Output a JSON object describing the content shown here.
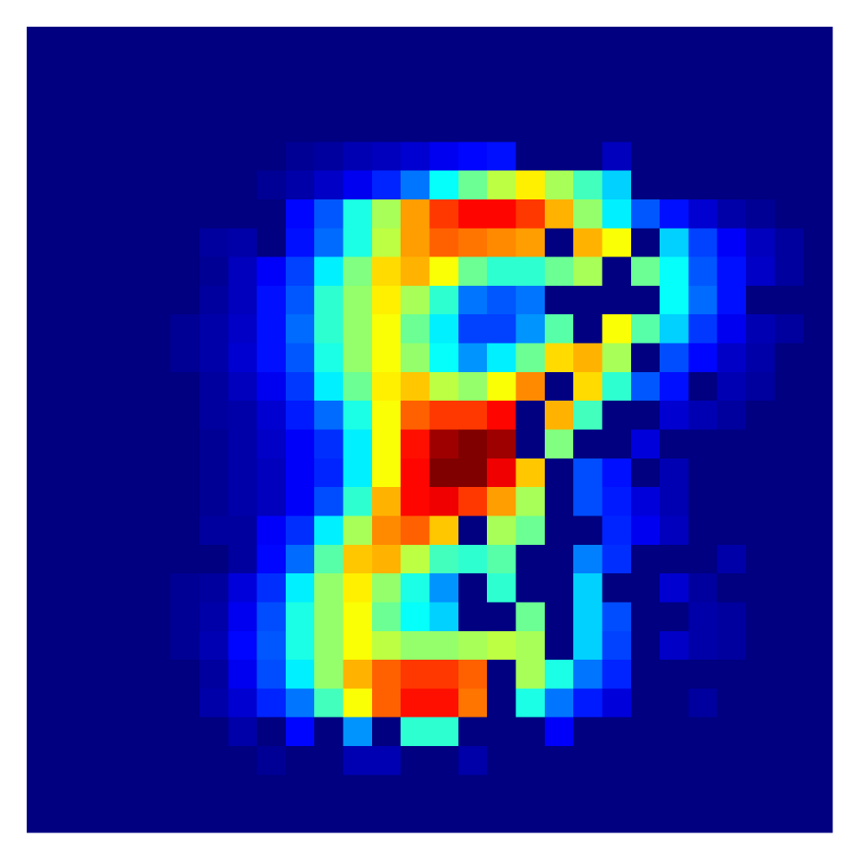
{
  "chart_data": {
    "type": "heatmap",
    "colormap": "jet",
    "zlim": [
      0,
      1
    ],
    "values": [
      [
        0,
        0,
        0,
        0,
        0,
        0,
        0,
        0,
        0,
        0,
        0,
        0,
        0,
        0,
        0,
        0,
        0,
        0,
        0,
        0,
        0,
        0,
        0,
        0,
        0,
        0,
        0,
        0
      ],
      [
        0,
        0,
        0,
        0,
        0,
        0,
        0,
        0,
        0,
        0,
        0,
        0,
        0,
        0,
        0,
        0,
        0,
        0,
        0,
        0,
        0,
        0,
        0,
        0,
        0,
        0,
        0,
        0
      ],
      [
        0,
        0,
        0,
        0,
        0,
        0,
        0,
        0,
        0,
        0,
        0,
        0,
        0,
        0,
        0,
        0,
        0,
        0,
        0,
        0,
        0,
        0,
        0,
        0,
        0,
        0,
        0,
        0
      ],
      [
        0,
        0,
        0,
        0,
        0,
        0,
        0,
        0,
        0,
        0,
        0,
        0,
        0,
        0,
        0,
        0,
        0,
        0,
        0,
        0,
        0,
        0,
        0,
        0,
        0,
        0,
        0,
        0
      ],
      [
        0,
        0,
        0,
        0,
        0,
        0,
        0,
        0,
        0,
        0.02,
        0.03,
        0.05,
        0.06,
        0.08,
        0.11,
        0.13,
        0.14,
        0,
        0,
        0,
        0.06,
        0,
        0,
        0,
        0,
        0,
        0,
        0
      ],
      [
        0,
        0,
        0,
        0,
        0,
        0,
        0,
        0,
        0.02,
        0.04,
        0.07,
        0.11,
        0.16,
        0.24,
        0.38,
        0.48,
        0.56,
        0.64,
        0.54,
        0.44,
        0.33,
        0,
        0,
        0,
        0,
        0,
        0,
        0
      ],
      [
        0,
        0,
        0,
        0,
        0,
        0,
        0,
        0,
        0,
        0.13,
        0.21,
        0.4,
        0.54,
        0.72,
        0.82,
        0.87,
        0.87,
        0.82,
        0.7,
        0.52,
        0.36,
        0.21,
        0.14,
        0.08,
        0.04,
        0.02,
        0,
        0
      ],
      [
        0,
        0,
        0,
        0,
        0,
        0,
        0.03,
        0.04,
        0,
        0.14,
        0.23,
        0.4,
        0.56,
        0.72,
        0.78,
        0.76,
        0.74,
        0.72,
        0,
        0.7,
        0.62,
        0,
        0.33,
        0.19,
        0.12,
        0.06,
        0.03,
        0
      ],
      [
        0,
        0,
        0,
        0,
        0,
        0,
        0.02,
        0.06,
        0.12,
        0.19,
        0.36,
        0.5,
        0.66,
        0.7,
        0.62,
        0.48,
        0.42,
        0.42,
        0.48,
        0.54,
        0,
        0.48,
        0.38,
        0.21,
        0.14,
        0.07,
        0.03,
        0
      ],
      [
        0,
        0,
        0,
        0,
        0,
        0,
        0.03,
        0.06,
        0.14,
        0.21,
        0.42,
        0.52,
        0.64,
        0.54,
        0.42,
        0.24,
        0.21,
        0.24,
        0,
        0,
        0,
        0,
        0.38,
        0.23,
        0.14,
        0,
        0,
        0
      ],
      [
        0,
        0,
        0,
        0,
        0,
        0.02,
        0.04,
        0.07,
        0.14,
        0.23,
        0.42,
        0.52,
        0.62,
        0.48,
        0.36,
        0.19,
        0.19,
        0.27,
        0.46,
        0,
        0.62,
        0.46,
        0.33,
        0.18,
        0.11,
        0.05,
        0.03,
        0
      ],
      [
        0,
        0,
        0,
        0,
        0,
        0.02,
        0.04,
        0.08,
        0.14,
        0.21,
        0.4,
        0.52,
        0.62,
        0.52,
        0.38,
        0.27,
        0.36,
        0.48,
        0.66,
        0.7,
        0.54,
        0,
        0.2,
        0.13,
        0.07,
        0.04,
        0,
        0
      ],
      [
        0,
        0,
        0,
        0,
        0,
        0,
        0.03,
        0.06,
        0.11,
        0.18,
        0.36,
        0.48,
        0.64,
        0.68,
        0.56,
        0.52,
        0.62,
        0.74,
        0,
        0.66,
        0.42,
        0.21,
        0.14,
        0,
        0.05,
        0.03,
        0,
        0
      ],
      [
        0,
        0,
        0,
        0,
        0,
        0,
        0.03,
        0.04,
        0.08,
        0.15,
        0.23,
        0.4,
        0.62,
        0.78,
        0.82,
        0.82,
        0.87,
        0,
        0.7,
        0.44,
        0,
        0,
        0.08,
        0.05,
        0.03,
        0,
        0,
        0
      ],
      [
        0,
        0,
        0,
        0,
        0,
        0,
        0.02,
        0.04,
        0.07,
        0.12,
        0.17,
        0.36,
        0.62,
        0.86,
        0.97,
        1,
        0.97,
        0,
        0.5,
        0,
        0,
        0.09,
        0,
        0,
        0,
        0,
        0,
        0
      ],
      [
        0,
        0,
        0,
        0,
        0,
        0,
        0.02,
        0.04,
        0.06,
        0.12,
        0.16,
        0.36,
        0.62,
        0.87,
        1,
        1,
        0.89,
        0.68,
        0,
        0.2,
        0.14,
        0,
        0.05,
        0,
        0,
        0,
        0,
        0
      ],
      [
        0,
        0,
        0,
        0,
        0,
        0,
        0.02,
        0.04,
        0.06,
        0.12,
        0.2,
        0.42,
        0.7,
        0.87,
        0.89,
        0.82,
        0.72,
        0.54,
        0,
        0.2,
        0.15,
        0.09,
        0.05,
        0,
        0,
        0,
        0,
        0
      ],
      [
        0,
        0,
        0,
        0,
        0,
        0,
        0.03,
        0.03,
        0.12,
        0.17,
        0.36,
        0.54,
        0.74,
        0.78,
        0.68,
        0,
        0.54,
        0.48,
        0,
        0,
        0.16,
        0.11,
        0.06,
        0,
        0,
        0,
        0,
        0
      ],
      [
        0,
        0,
        0,
        0,
        0,
        0,
        0,
        0.03,
        0.13,
        0.23,
        0.46,
        0.68,
        0.7,
        0.56,
        0.44,
        0.42,
        0.46,
        0,
        0,
        0.25,
        0.17,
        0,
        0,
        0,
        0.04,
        0,
        0,
        0
      ],
      [
        0,
        0,
        0,
        0,
        0,
        0.02,
        0.03,
        0.09,
        0.17,
        0.36,
        0.52,
        0.64,
        0.52,
        0.4,
        0.27,
        0,
        0.42,
        0,
        0,
        0.33,
        0,
        0,
        0.08,
        0.03,
        0,
        0,
        0,
        0
      ],
      [
        0,
        0,
        0,
        0,
        0,
        0.02,
        0.04,
        0.11,
        0.2,
        0.4,
        0.52,
        0.62,
        0.48,
        0.38,
        0.33,
        0,
        0,
        0.48,
        0,
        0.33,
        0.2,
        0,
        0,
        0.04,
        0.03,
        0,
        0,
        0
      ],
      [
        0,
        0,
        0,
        0,
        0,
        0.02,
        0.05,
        0.13,
        0.21,
        0.4,
        0.52,
        0.62,
        0.56,
        0.52,
        0.52,
        0.54,
        0.56,
        0.54,
        0,
        0.33,
        0.19,
        0,
        0.07,
        0.04,
        0.03,
        0,
        0,
        0
      ],
      [
        0,
        0,
        0,
        0,
        0,
        0,
        0.03,
        0.11,
        0.2,
        0.36,
        0.52,
        0.7,
        0.78,
        0.82,
        0.82,
        0.78,
        0,
        0.54,
        0.4,
        0.24,
        0.16,
        0,
        0,
        0,
        0,
        0,
        0,
        0
      ],
      [
        0,
        0,
        0,
        0,
        0,
        0,
        0.04,
        0.08,
        0.16,
        0.24,
        0.44,
        0.62,
        0.78,
        0.86,
        0.86,
        0.76,
        0,
        0.4,
        0.24,
        0.15,
        0.09,
        0,
        0,
        0.03,
        0,
        0,
        0,
        0
      ],
      [
        0,
        0,
        0,
        0,
        0,
        0,
        0,
        0.04,
        0,
        0.13,
        0,
        0.27,
        0,
        0.42,
        0.42,
        0,
        0,
        0,
        0.12,
        0,
        0,
        0,
        0,
        0,
        0,
        0,
        0,
        0
      ],
      [
        0,
        0,
        0,
        0,
        0,
        0,
        0,
        0,
        0.02,
        0,
        0,
        0.05,
        0.05,
        0,
        0,
        0.04,
        0,
        0,
        0,
        0,
        0,
        0,
        0,
        0,
        0,
        0,
        0,
        0
      ],
      [
        0,
        0,
        0,
        0,
        0,
        0,
        0,
        0,
        0,
        0,
        0,
        0,
        0,
        0,
        0,
        0,
        0,
        0,
        0,
        0,
        0,
        0,
        0,
        0,
        0,
        0,
        0,
        0
      ],
      [
        0,
        0,
        0,
        0,
        0,
        0,
        0,
        0,
        0,
        0,
        0,
        0,
        0,
        0,
        0,
        0,
        0,
        0,
        0,
        0,
        0,
        0,
        0,
        0,
        0,
        0,
        0,
        0
      ]
    ]
  }
}
